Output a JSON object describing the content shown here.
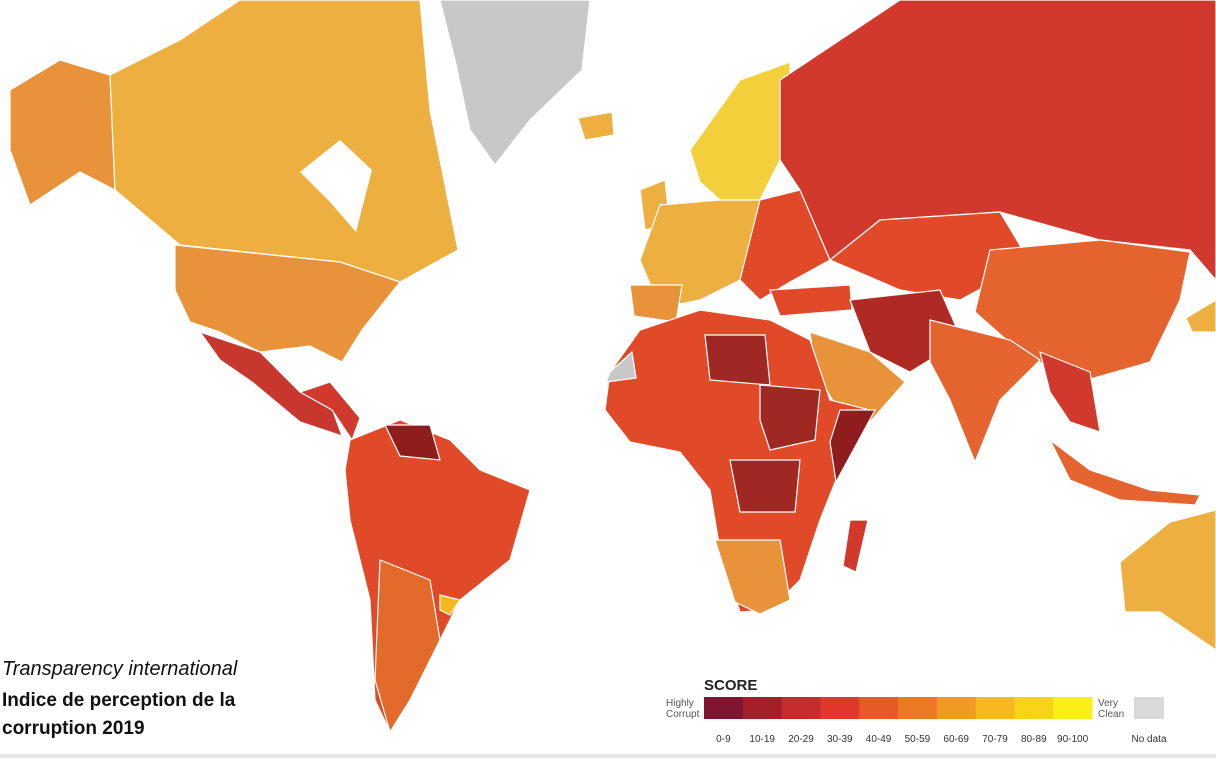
{
  "caption": {
    "source": "Transparency international",
    "title_lines": [
      "Indice de perception de la",
      "corruption 2019"
    ]
  },
  "legend": {
    "title": "SCORE",
    "low_label": [
      "Highly",
      "Corrupt"
    ],
    "high_label": [
      "Very",
      "Clean"
    ],
    "bins": [
      {
        "label": "0-9",
        "color": "#7f1530"
      },
      {
        "label": "10-19",
        "color": "#a3202a"
      },
      {
        "label": "20-29",
        "color": "#c62c2c"
      },
      {
        "label": "30-39",
        "color": "#e0392b"
      },
      {
        "label": "40-49",
        "color": "#e65a28"
      },
      {
        "label": "50-59",
        "color": "#ec7a25"
      },
      {
        "label": "60-69",
        "color": "#f09a22"
      },
      {
        "label": "70-79",
        "color": "#f5b81e"
      },
      {
        "label": "80-89",
        "color": "#f8d419"
      },
      {
        "label": "90-100",
        "color": "#fbf015"
      }
    ],
    "no_data": {
      "label": "No data",
      "color": "#d9d9d9"
    }
  }
}
